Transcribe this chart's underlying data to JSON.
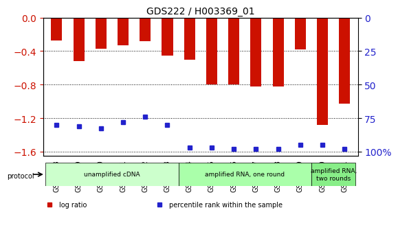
{
  "title": "GDS222 / H003369_01",
  "samples": [
    "GSM4848",
    "GSM4849",
    "GSM4850",
    "GSM4851",
    "GSM4852",
    "GSM4853",
    "GSM4854",
    "GSM4855",
    "GSM4856",
    "GSM4857",
    "GSM4858",
    "GSM4859",
    "GSM4860",
    "GSM4861"
  ],
  "log_ratio": [
    -0.27,
    -0.52,
    -0.37,
    -0.33,
    -0.28,
    -0.45,
    -0.5,
    -0.8,
    -0.8,
    -0.82,
    -0.82,
    -0.38,
    -1.28,
    -1.03
  ],
  "percentile": [
    -1.28,
    -1.3,
    -1.32,
    -1.25,
    -1.18,
    -1.28,
    -1.55,
    -1.55,
    -1.57,
    -1.57,
    -1.57,
    -1.52,
    -1.52,
    -1.57
  ],
  "bar_color": "#cc1100",
  "blue_color": "#2222cc",
  "ylim_left": [
    -1.65,
    0.0
  ],
  "yticks_left": [
    0.0,
    -0.4,
    -0.8,
    -1.2,
    -1.6
  ],
  "yticks_right_vals": [
    0,
    25,
    50,
    75,
    100
  ],
  "yticks_right_pos": [
    0.0,
    -0.4,
    -0.8,
    -1.2,
    -1.6
  ],
  "protocols": [
    {
      "label": "unamplified cDNA",
      "start": 0,
      "end": 5,
      "color": "#ccffcc"
    },
    {
      "label": "amplified RNA, one round",
      "start": 6,
      "end": 11,
      "color": "#aaffaa"
    },
    {
      "label": "amplified RNA,\ntwo rounds",
      "start": 12,
      "end": 13,
      "color": "#88ee88"
    }
  ],
  "protocol_label": "protocol",
  "legend_items": [
    {
      "color": "#cc1100",
      "label": "log ratio"
    },
    {
      "color": "#2222cc",
      "label": "percentile rank within the sample"
    }
  ],
  "bar_width": 0.5,
  "background_color": "#ffffff"
}
